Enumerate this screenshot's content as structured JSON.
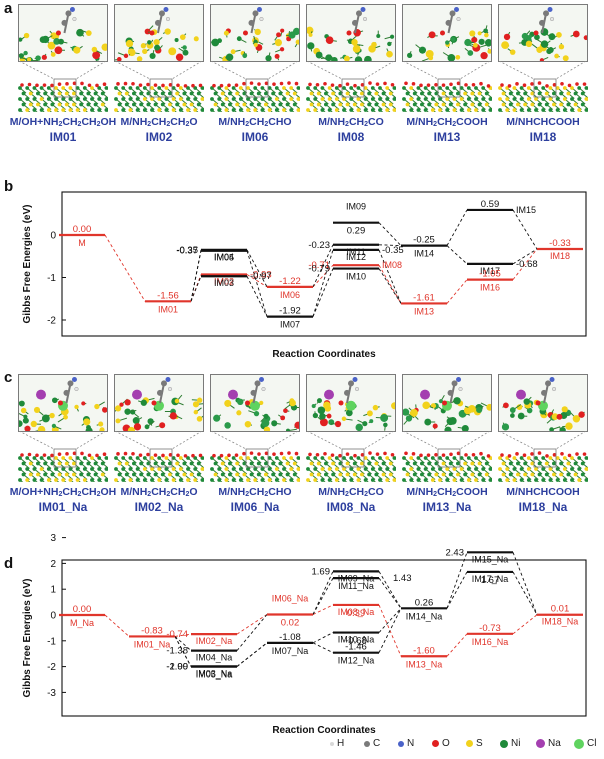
{
  "panels": {
    "a": "a",
    "b": "b",
    "c": "c",
    "d": "d"
  },
  "structures_top": [
    {
      "cap_main": "M/OH+NH",
      "cap_rest": [
        "2",
        "CH",
        "2",
        "CH",
        "2",
        "OH"
      ],
      "id": "IM01"
    },
    {
      "cap_main": "M/NH",
      "cap_rest": [
        "2",
        "CH",
        "2",
        "CH",
        "2",
        "O"
      ],
      "id": "IM02"
    },
    {
      "cap_main": "M/NH",
      "cap_rest": [
        "2",
        "CH",
        "2",
        "CHO"
      ],
      "id": "IM06"
    },
    {
      "cap_main": "M/NH",
      "cap_rest": [
        "2",
        "CH",
        "2",
        "CO"
      ],
      "id": "IM08"
    },
    {
      "cap_main": "M/NH",
      "cap_rest": [
        "2",
        "CH",
        "2",
        "COOH"
      ],
      "id": "IM13"
    },
    {
      "cap_main": "M/NHCHCOOH",
      "cap_rest": [],
      "id": "IM18"
    }
  ],
  "structures_bottom": [
    {
      "cap_main": "M/OH+NH",
      "cap_rest": [
        "2",
        "CH",
        "2",
        "CH",
        "2",
        "OH"
      ],
      "id": "IM01_Na"
    },
    {
      "cap_main": "M/NH",
      "cap_rest": [
        "2",
        "CH",
        "2",
        "CH",
        "2",
        "O"
      ],
      "id": "IM02_Na"
    },
    {
      "cap_main": "M/NH",
      "cap_rest": [
        "2",
        "CH",
        "2",
        "CHO"
      ],
      "id": "IM06_Na"
    },
    {
      "cap_main": "M/NH",
      "cap_rest": [
        "2",
        "CH",
        "2",
        "CO"
      ],
      "id": "IM08_Na"
    },
    {
      "cap_main": "M/NH",
      "cap_rest": [
        "2",
        "CH",
        "2",
        "COOH"
      ],
      "id": "IM13_Na"
    },
    {
      "cap_main": "M/NHCHCOOH",
      "cap_rest": [],
      "id": "IM18_Na"
    }
  ],
  "chart_data": [
    {
      "type": "line",
      "panel": "b",
      "xlabel": "Reaction Coordinates",
      "ylabel": "Gibbs Free Energies (eV)",
      "ylim": [
        -2.5,
        0.9
      ],
      "yticks": [
        "0",
        "-1",
        "-2"
      ],
      "levels": [
        {
          "name": "M",
          "value": 0.0,
          "color": "red"
        },
        {
          "name": "IM01",
          "value": -1.56,
          "color": "red"
        },
        {
          "name": "IM04",
          "value": -0.35,
          "color": "black"
        },
        {
          "name": "IM05",
          "value": -0.37,
          "color": "black"
        },
        {
          "name": "IM02",
          "value": -0.93,
          "color": "red"
        },
        {
          "name": "IM03",
          "value": -0.97,
          "color": "black"
        },
        {
          "name": "IM06",
          "value": -1.22,
          "color": "red"
        },
        {
          "name": "IM07",
          "value": -1.92,
          "color": "black"
        },
        {
          "name": "IM09",
          "value": 0.29,
          "color": "black"
        },
        {
          "name": "IM11",
          "value": -0.23,
          "color": "black"
        },
        {
          "name": "IM12",
          "value": -0.35,
          "color": "black"
        },
        {
          "name": "IM08",
          "value": -0.71,
          "color": "red"
        },
        {
          "name": "IM10",
          "value": -0.79,
          "color": "black"
        },
        {
          "name": "IM13",
          "value": -1.61,
          "color": "red"
        },
        {
          "name": "IM14",
          "value": -0.25,
          "color": "black"
        },
        {
          "name": "IM15",
          "value": 0.59,
          "color": "black"
        },
        {
          "name": "IM17",
          "value": -0.68,
          "color": "black"
        },
        {
          "name": "IM16",
          "value": -1.05,
          "color": "red"
        },
        {
          "name": "IM18",
          "value": -0.33,
          "color": "red"
        }
      ]
    },
    {
      "type": "line",
      "panel": "d",
      "xlabel": "Reaction Coordinates",
      "ylabel": "Gibbs Free Energies (eV)",
      "ylim": [
        -3,
        3
      ],
      "yticks": [
        "3",
        "2",
        "1",
        "0",
        "-1",
        "-2",
        "-3"
      ],
      "levels": [
        {
          "name": "M_Na",
          "value": 0.0,
          "color": "red"
        },
        {
          "name": "IM01_Na",
          "value": -0.83,
          "color": "red"
        },
        {
          "name": "IM02_Na",
          "value": -0.74,
          "color": "red"
        },
        {
          "name": "IM04_Na",
          "value": -1.38,
          "color": "black"
        },
        {
          "name": "IM03_Na",
          "value": -1.99,
          "color": "black"
        },
        {
          "name": "IM05_Na",
          "value": -2.0,
          "color": "black"
        },
        {
          "name": "IM06_Na",
          "value": 0.02,
          "color": "red"
        },
        {
          "name": "IM07_Na",
          "value": -1.08,
          "color": "black"
        },
        {
          "name": "IM09_Na",
          "value": 1.69,
          "color": "black"
        },
        {
          "name": "IM11_Na",
          "value": 1.43,
          "color": "black"
        },
        {
          "name": "IM08_Na",
          "value": 0.39,
          "color": "red"
        },
        {
          "name": "IM10_Na",
          "value": -0.68,
          "color": "black"
        },
        {
          "name": "IM12_Na",
          "value": -1.46,
          "color": "black"
        },
        {
          "name": "IM14_Na",
          "value": 0.26,
          "color": "black"
        },
        {
          "name": "IM13_Na",
          "value": -1.6,
          "color": "red"
        },
        {
          "name": "IM15_Na",
          "value": 2.43,
          "color": "black"
        },
        {
          "name": "IM17_Na",
          "value": 1.67,
          "color": "black"
        },
        {
          "name": "IM16_Na",
          "value": -0.73,
          "color": "red"
        },
        {
          "name": "IM18_Na",
          "value": 0.01,
          "color": "red"
        }
      ]
    }
  ],
  "legend": [
    {
      "label": "H",
      "color": "#d8d8d8"
    },
    {
      "label": "C",
      "color": "#7a7a7a"
    },
    {
      "label": "N",
      "color": "#4a62c8"
    },
    {
      "label": "O",
      "color": "#e02020"
    },
    {
      "label": "S",
      "color": "#f2d21c"
    },
    {
      "label": "Ni",
      "color": "#1f8a3a"
    },
    {
      "label": "Na",
      "color": "#a43fb0"
    },
    {
      "label": "Cl",
      "color": "#5fd35f"
    }
  ],
  "colors": {
    "red": "#e0352b",
    "black": "#111111",
    "caption_blue": "#2d3f9e"
  }
}
